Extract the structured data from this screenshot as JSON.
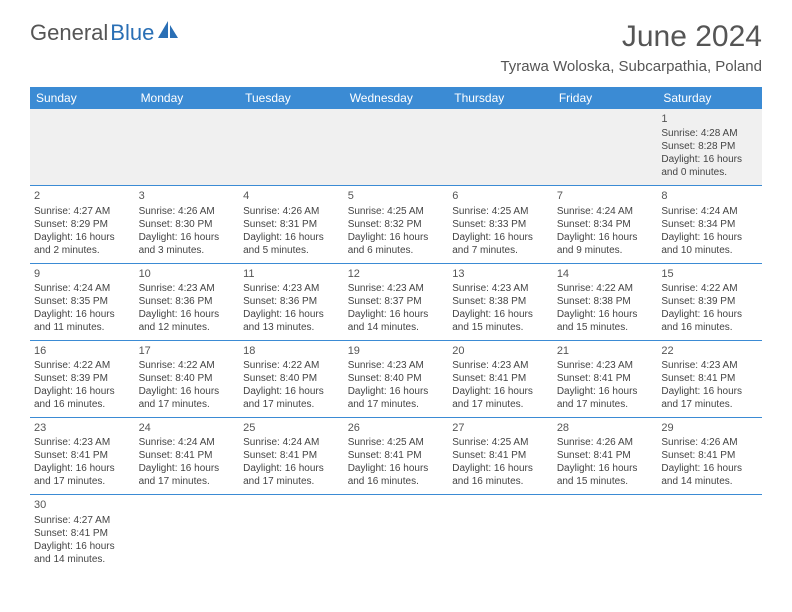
{
  "brand": {
    "word1": "General",
    "word2": "Blue"
  },
  "title": "June 2024",
  "location": "Tyrawa Woloska, Subcarpathia, Poland",
  "colors": {
    "header_bg": "#3b8bd4",
    "header_text": "#ffffff",
    "cell_border": "#3b8bd4",
    "logo_accent": "#2a6fb5",
    "body_text": "#444444",
    "first_row_bg": "#f0f0f0"
  },
  "daynames": [
    "Sunday",
    "Monday",
    "Tuesday",
    "Wednesday",
    "Thursday",
    "Friday",
    "Saturday"
  ],
  "weeks": [
    [
      null,
      null,
      null,
      null,
      null,
      null,
      {
        "n": "1",
        "sr": "Sunrise: 4:28 AM",
        "ss": "Sunset: 8:28 PM",
        "d1": "Daylight: 16 hours",
        "d2": "and 0 minutes."
      }
    ],
    [
      {
        "n": "2",
        "sr": "Sunrise: 4:27 AM",
        "ss": "Sunset: 8:29 PM",
        "d1": "Daylight: 16 hours",
        "d2": "and 2 minutes."
      },
      {
        "n": "3",
        "sr": "Sunrise: 4:26 AM",
        "ss": "Sunset: 8:30 PM",
        "d1": "Daylight: 16 hours",
        "d2": "and 3 minutes."
      },
      {
        "n": "4",
        "sr": "Sunrise: 4:26 AM",
        "ss": "Sunset: 8:31 PM",
        "d1": "Daylight: 16 hours",
        "d2": "and 5 minutes."
      },
      {
        "n": "5",
        "sr": "Sunrise: 4:25 AM",
        "ss": "Sunset: 8:32 PM",
        "d1": "Daylight: 16 hours",
        "d2": "and 6 minutes."
      },
      {
        "n": "6",
        "sr": "Sunrise: 4:25 AM",
        "ss": "Sunset: 8:33 PM",
        "d1": "Daylight: 16 hours",
        "d2": "and 7 minutes."
      },
      {
        "n": "7",
        "sr": "Sunrise: 4:24 AM",
        "ss": "Sunset: 8:34 PM",
        "d1": "Daylight: 16 hours",
        "d2": "and 9 minutes."
      },
      {
        "n": "8",
        "sr": "Sunrise: 4:24 AM",
        "ss": "Sunset: 8:34 PM",
        "d1": "Daylight: 16 hours",
        "d2": "and 10 minutes."
      }
    ],
    [
      {
        "n": "9",
        "sr": "Sunrise: 4:24 AM",
        "ss": "Sunset: 8:35 PM",
        "d1": "Daylight: 16 hours",
        "d2": "and 11 minutes."
      },
      {
        "n": "10",
        "sr": "Sunrise: 4:23 AM",
        "ss": "Sunset: 8:36 PM",
        "d1": "Daylight: 16 hours",
        "d2": "and 12 minutes."
      },
      {
        "n": "11",
        "sr": "Sunrise: 4:23 AM",
        "ss": "Sunset: 8:36 PM",
        "d1": "Daylight: 16 hours",
        "d2": "and 13 minutes."
      },
      {
        "n": "12",
        "sr": "Sunrise: 4:23 AM",
        "ss": "Sunset: 8:37 PM",
        "d1": "Daylight: 16 hours",
        "d2": "and 14 minutes."
      },
      {
        "n": "13",
        "sr": "Sunrise: 4:23 AM",
        "ss": "Sunset: 8:38 PM",
        "d1": "Daylight: 16 hours",
        "d2": "and 15 minutes."
      },
      {
        "n": "14",
        "sr": "Sunrise: 4:22 AM",
        "ss": "Sunset: 8:38 PM",
        "d1": "Daylight: 16 hours",
        "d2": "and 15 minutes."
      },
      {
        "n": "15",
        "sr": "Sunrise: 4:22 AM",
        "ss": "Sunset: 8:39 PM",
        "d1": "Daylight: 16 hours",
        "d2": "and 16 minutes."
      }
    ],
    [
      {
        "n": "16",
        "sr": "Sunrise: 4:22 AM",
        "ss": "Sunset: 8:39 PM",
        "d1": "Daylight: 16 hours",
        "d2": "and 16 minutes."
      },
      {
        "n": "17",
        "sr": "Sunrise: 4:22 AM",
        "ss": "Sunset: 8:40 PM",
        "d1": "Daylight: 16 hours",
        "d2": "and 17 minutes."
      },
      {
        "n": "18",
        "sr": "Sunrise: 4:22 AM",
        "ss": "Sunset: 8:40 PM",
        "d1": "Daylight: 16 hours",
        "d2": "and 17 minutes."
      },
      {
        "n": "19",
        "sr": "Sunrise: 4:23 AM",
        "ss": "Sunset: 8:40 PM",
        "d1": "Daylight: 16 hours",
        "d2": "and 17 minutes."
      },
      {
        "n": "20",
        "sr": "Sunrise: 4:23 AM",
        "ss": "Sunset: 8:41 PM",
        "d1": "Daylight: 16 hours",
        "d2": "and 17 minutes."
      },
      {
        "n": "21",
        "sr": "Sunrise: 4:23 AM",
        "ss": "Sunset: 8:41 PM",
        "d1": "Daylight: 16 hours",
        "d2": "and 17 minutes."
      },
      {
        "n": "22",
        "sr": "Sunrise: 4:23 AM",
        "ss": "Sunset: 8:41 PM",
        "d1": "Daylight: 16 hours",
        "d2": "and 17 minutes."
      }
    ],
    [
      {
        "n": "23",
        "sr": "Sunrise: 4:23 AM",
        "ss": "Sunset: 8:41 PM",
        "d1": "Daylight: 16 hours",
        "d2": "and 17 minutes."
      },
      {
        "n": "24",
        "sr": "Sunrise: 4:24 AM",
        "ss": "Sunset: 8:41 PM",
        "d1": "Daylight: 16 hours",
        "d2": "and 17 minutes."
      },
      {
        "n": "25",
        "sr": "Sunrise: 4:24 AM",
        "ss": "Sunset: 8:41 PM",
        "d1": "Daylight: 16 hours",
        "d2": "and 17 minutes."
      },
      {
        "n": "26",
        "sr": "Sunrise: 4:25 AM",
        "ss": "Sunset: 8:41 PM",
        "d1": "Daylight: 16 hours",
        "d2": "and 16 minutes."
      },
      {
        "n": "27",
        "sr": "Sunrise: 4:25 AM",
        "ss": "Sunset: 8:41 PM",
        "d1": "Daylight: 16 hours",
        "d2": "and 16 minutes."
      },
      {
        "n": "28",
        "sr": "Sunrise: 4:26 AM",
        "ss": "Sunset: 8:41 PM",
        "d1": "Daylight: 16 hours",
        "d2": "and 15 minutes."
      },
      {
        "n": "29",
        "sr": "Sunrise: 4:26 AM",
        "ss": "Sunset: 8:41 PM",
        "d1": "Daylight: 16 hours",
        "d2": "and 14 minutes."
      }
    ],
    [
      {
        "n": "30",
        "sr": "Sunrise: 4:27 AM",
        "ss": "Sunset: 8:41 PM",
        "d1": "Daylight: 16 hours",
        "d2": "and 14 minutes."
      },
      null,
      null,
      null,
      null,
      null,
      null
    ]
  ]
}
